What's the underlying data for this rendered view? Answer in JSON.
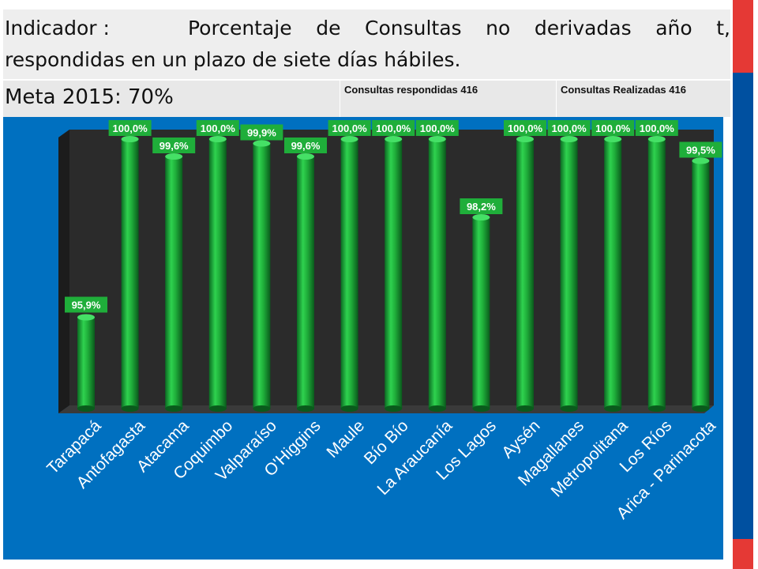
{
  "header": {
    "indicator_label": "Indicador :",
    "indicator_text_line1": [
      "Porcentaje",
      "de",
      "Consultas",
      "no",
      "derivadas",
      "año",
      "t,"
    ],
    "indicator_text_line2": "respondidas en un plazo de siete días hábiles.",
    "meta": "Meta 2015: 70%",
    "respondidas": "Consultas respondidas 416",
    "realizadas": "Consultas Realizadas 416"
  },
  "colors": {
    "background": "#0070c0",
    "plot_back": "#303030",
    "bar": "#1fae3a",
    "label_box": "#1fae3a",
    "label_text": "#ffffff",
    "stripe_red": "#e53935",
    "stripe_blue": "#0050a0"
  },
  "chart_data": {
    "type": "bar",
    "style": "3d-cylinder",
    "categories": [
      "Tarapacá",
      "Antofagasta",
      "Atacama",
      "Coquimbo",
      "Valparaíso",
      "O'Higgins",
      "Maule",
      "Bío Bío",
      "La Araucanía",
      "Los Lagos",
      "Aysén",
      "Magallanes",
      "Metropolitana",
      "Los Ríos",
      "Arica - Parinacota"
    ],
    "values": [
      95.9,
      100.0,
      99.6,
      100.0,
      99.9,
      99.6,
      100.0,
      100.0,
      100.0,
      98.2,
      100.0,
      100.0,
      100.0,
      100.0,
      99.5
    ],
    "data_labels": [
      "95,9%",
      "100,0%",
      "99,6%",
      "100,0%",
      "99,9%",
      "99,6%",
      "100,0%",
      "100,0%",
      "100,0%",
      "98,2%",
      "100,0%",
      "100,0%",
      "100,0%",
      "100,0%",
      "99,5%"
    ],
    "ylim": [
      93.8,
      100.0
    ],
    "grid": false,
    "legend": "none"
  }
}
